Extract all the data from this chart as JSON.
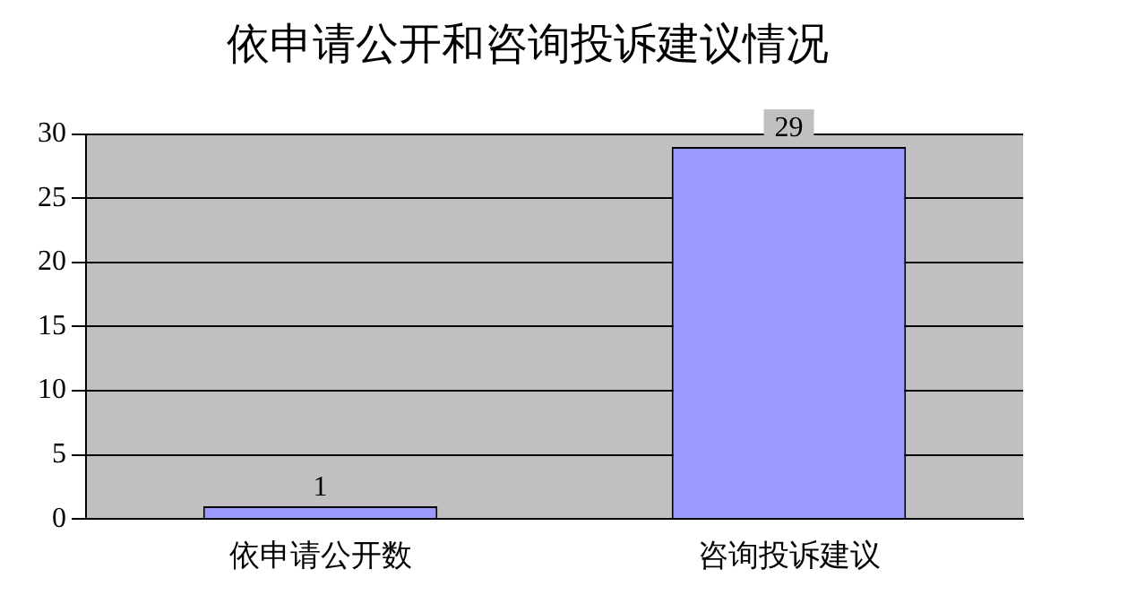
{
  "chart_data": {
    "type": "bar",
    "title": "依申请公开和咨询投诉建议情况",
    "categories": [
      "依申请公开数",
      "咨询投诉建议"
    ],
    "values": [
      1,
      29
    ],
    "color": "#9999ff",
    "ylim": [
      0,
      30
    ],
    "yticks": [
      0,
      5,
      10,
      15,
      20,
      25,
      30
    ],
    "grid": "y",
    "data_labels": true
  }
}
